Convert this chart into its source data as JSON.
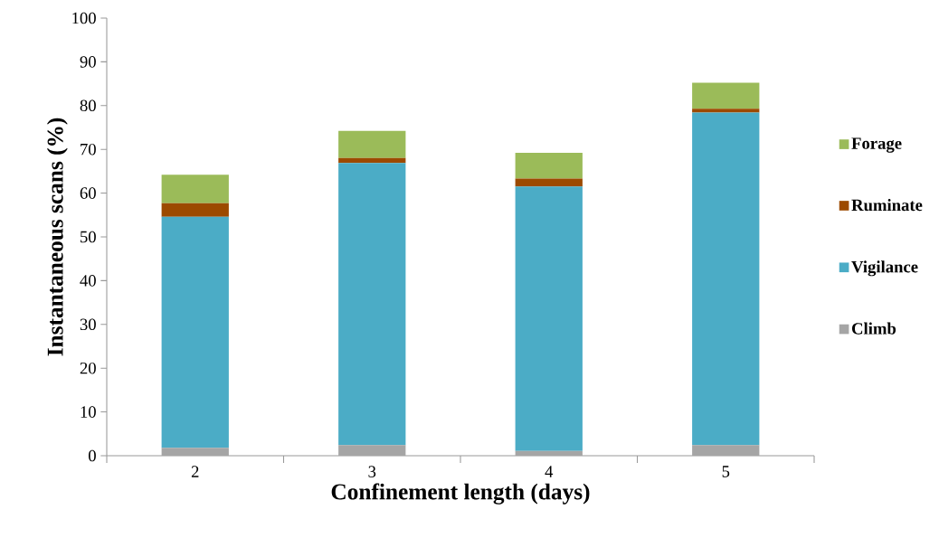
{
  "chart_data": {
    "type": "bar",
    "stacked": true,
    "xlabel": "Confinement length (days)",
    "ylabel": "Instantaneous scans (%)",
    "categories": [
      "2",
      "3",
      "4",
      "5"
    ],
    "series": [
      {
        "name": "Climb",
        "color": "#a5a5a5",
        "values": [
          1.8,
          2.4,
          1.1,
          2.4
        ]
      },
      {
        "name": "Vigilance",
        "color": "#4bacc6",
        "values": [
          52.8,
          64.5,
          60.4,
          76.0
        ]
      },
      {
        "name": "Ruminate",
        "color": "#9c4a00",
        "values": [
          3.1,
          1.1,
          1.8,
          0.9
        ]
      },
      {
        "name": "Forage",
        "color": "#9bbb59",
        "values": [
          6.5,
          6.2,
          5.9,
          5.9
        ]
      }
    ],
    "ylim": [
      0,
      100
    ],
    "yticks": [
      0,
      10,
      20,
      30,
      40,
      50,
      60,
      70,
      80,
      90,
      100
    ],
    "grid": false,
    "legend": "right"
  }
}
